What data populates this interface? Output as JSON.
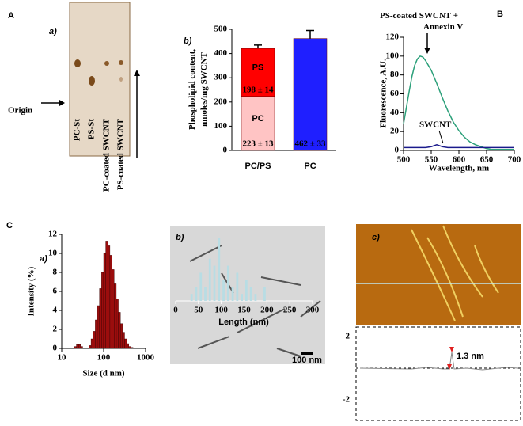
{
  "panel_labels": [
    "A",
    "a)",
    "b)",
    "B",
    "C",
    "a)",
    "b)",
    "c)"
  ],
  "tlc": {
    "origin_label": "Origin",
    "lanes": [
      "PC-St",
      "PS-St",
      "PC-coated SWCNT",
      "PS-coated SWCNT"
    ]
  },
  "tem": {
    "scale_bar": "100 nm"
  },
  "afm": {
    "profile_label": "1.3 nm",
    "profile_ticks": [
      "2",
      "-2"
    ]
  },
  "chart_data": [
    {
      "type": "bar",
      "stacked": true,
      "ylabel": "Phospholipid content, nmoles/mg SWCNT",
      "categories": [
        "PC/PS",
        "PC"
      ],
      "category_colors": [
        "#e00000",
        "#1414c8"
      ],
      "series": [
        {
          "name": "PC",
          "colors": [
            "#ffc4c4",
            "#1f1fff"
          ],
          "values": [
            223,
            462
          ],
          "errors": [
            13,
            33
          ],
          "value_labels": [
            "223 ± 13",
            "462 ± 33"
          ]
        },
        {
          "name": "PS",
          "color": "#ff0000",
          "values": [
            198,
            null
          ],
          "errors": [
            14,
            null
          ],
          "value_labels": [
            "198 ± 14",
            null
          ]
        }
      ],
      "ylim": [
        0,
        500
      ],
      "yticks": [
        0,
        100,
        200,
        300,
        400,
        500
      ]
    },
    {
      "type": "line",
      "xlabel": "Wavelength, nm",
      "ylabel": "Fluorescence, A.U.",
      "x": [
        500,
        505,
        510,
        515,
        520,
        525,
        530,
        535,
        540,
        550,
        560,
        570,
        580,
        590,
        600,
        610,
        620,
        630,
        640,
        650,
        660,
        680,
        700
      ],
      "series": [
        {
          "name": "PS-coated SWCNT + Annexin V",
          "color": "#2ca07a",
          "values": [
            28,
            45,
            62,
            78,
            90,
            97,
            100,
            99,
            95,
            85,
            71,
            56,
            42,
            30,
            21,
            14,
            9,
            6,
            4,
            2,
            1,
            1,
            1
          ]
        },
        {
          "name": "SWCNT",
          "color": "#1a1a8c",
          "values": [
            3,
            3,
            3,
            3,
            3,
            3,
            3,
            3,
            3,
            4,
            6,
            4,
            3,
            3,
            3,
            3,
            3,
            3,
            3,
            3,
            3,
            3,
            3
          ]
        }
      ],
      "xlim": [
        500,
        700
      ],
      "xticks": [
        500,
        550,
        600,
        650,
        700
      ],
      "ylim": [
        0,
        120
      ],
      "yticks": [
        0,
        20,
        40,
        60,
        80,
        100,
        120
      ]
    },
    {
      "type": "histogram",
      "log_x": true,
      "xlabel": "Size (d nm)",
      "ylabel": "Intensity (%)",
      "color": "#9b0d0d",
      "bins": [
        20.0,
        22.4,
        25.1,
        28.2,
        31.6,
        35.5,
        39.8,
        44.7,
        50.1,
        56.2,
        63.1,
        70.8,
        79.4,
        89.1,
        100,
        112,
        126,
        141,
        158,
        178,
        200,
        224,
        251,
        282,
        316,
        355,
        398,
        447,
        501
      ],
      "counts": [
        0.2,
        0.4,
        0.4,
        0.2,
        0,
        0,
        0,
        0.3,
        1,
        1.8,
        3,
        4.5,
        6.3,
        8,
        10,
        11.3,
        10.8,
        9.8,
        8.3,
        6.8,
        5.2,
        3.8,
        2.6,
        1.7,
        1,
        0.5,
        0.2,
        0.1
      ],
      "xlim": [
        10,
        1000
      ],
      "xticks": [
        10,
        100,
        1000
      ],
      "ylim": [
        0,
        12
      ],
      "yticks": [
        0,
        2,
        4,
        6,
        8,
        10,
        12
      ]
    },
    {
      "type": "histogram",
      "xlabel": "Length (nm)",
      "color": "#b8dde4",
      "bins": [
        30,
        40,
        50,
        60,
        70,
        80,
        90,
        100,
        110,
        120,
        130,
        140,
        150,
        160,
        170,
        180,
        190,
        200
      ],
      "counts": [
        1,
        2,
        4,
        2,
        6,
        5,
        9,
        3,
        5,
        2,
        4,
        1,
        3,
        2,
        1,
        0,
        2
      ],
      "xlim": [
        0,
        300
      ],
      "xticks": [
        0,
        50,
        100,
        150,
        200,
        250,
        300
      ]
    }
  ]
}
